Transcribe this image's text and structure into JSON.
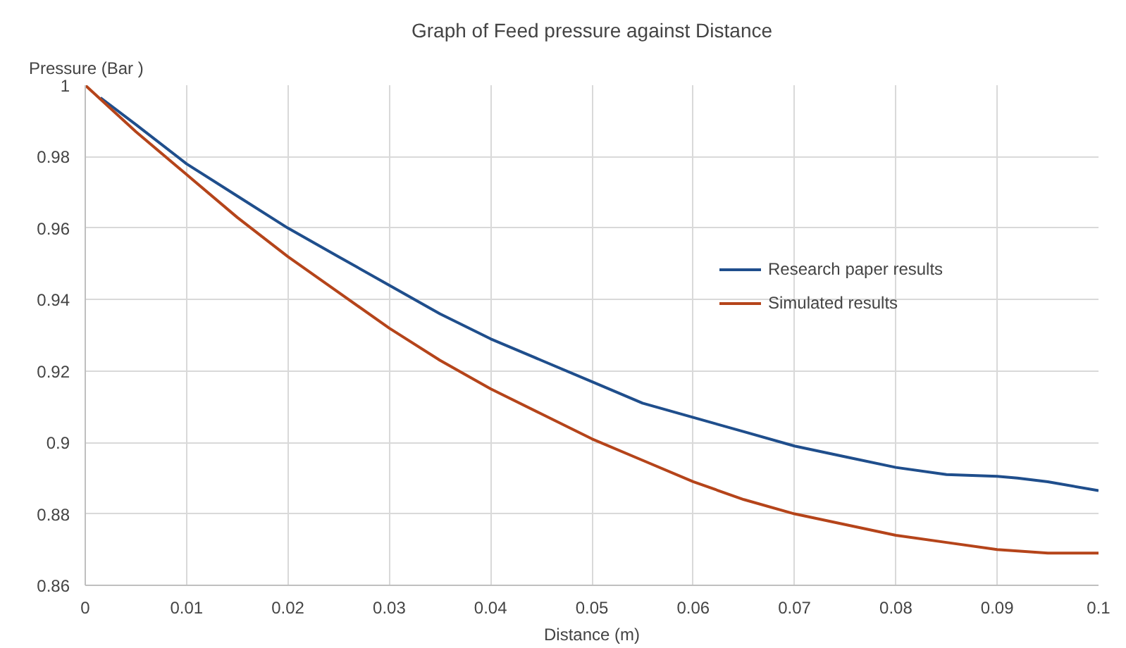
{
  "chart_data": {
    "type": "line",
    "title": "Graph of Feed pressure against Distance",
    "xlabel": "Distance (m)",
    "ylabel": "Pressure (Bar )",
    "xlim": [
      0,
      0.1
    ],
    "ylim": [
      0.86,
      1
    ],
    "xticks": [
      0,
      0.01,
      0.02,
      0.03,
      0.04,
      0.05,
      0.06,
      0.07,
      0.08,
      0.09,
      0.1
    ],
    "yticks": [
      0.86,
      0.88,
      0.9,
      0.92,
      0.94,
      0.96,
      0.98,
      1
    ],
    "grid": true,
    "legend": "right",
    "marker": "none",
    "line_style": "solid",
    "series": [
      {
        "name": "Research paper results",
        "color": "#1f4e8c",
        "x": [
          0.0015,
          0.005,
          0.01,
          0.015,
          0.02,
          0.025,
          0.03,
          0.035,
          0.04,
          0.045,
          0.05,
          0.055,
          0.06,
          0.065,
          0.07,
          0.075,
          0.08,
          0.085,
          0.09,
          0.092,
          0.095,
          0.1
        ],
        "values": [
          0.9965,
          0.989,
          0.978,
          0.969,
          0.96,
          0.952,
          0.944,
          0.936,
          0.929,
          0.923,
          0.917,
          0.911,
          0.907,
          0.903,
          0.899,
          0.896,
          0.893,
          0.891,
          0.8905,
          0.89,
          0.889,
          0.8865
        ]
      },
      {
        "name": "Simulated results",
        "color": "#b5441a",
        "x": [
          0,
          0.005,
          0.01,
          0.015,
          0.02,
          0.025,
          0.03,
          0.035,
          0.04,
          0.045,
          0.05,
          0.055,
          0.06,
          0.065,
          0.07,
          0.075,
          0.08,
          0.085,
          0.09,
          0.095,
          0.1
        ],
        "values": [
          1.0,
          0.987,
          0.975,
          0.963,
          0.952,
          0.942,
          0.932,
          0.923,
          0.915,
          0.908,
          0.901,
          0.895,
          0.889,
          0.884,
          0.88,
          0.877,
          0.874,
          0.872,
          0.87,
          0.869,
          0.869
        ]
      }
    ]
  }
}
